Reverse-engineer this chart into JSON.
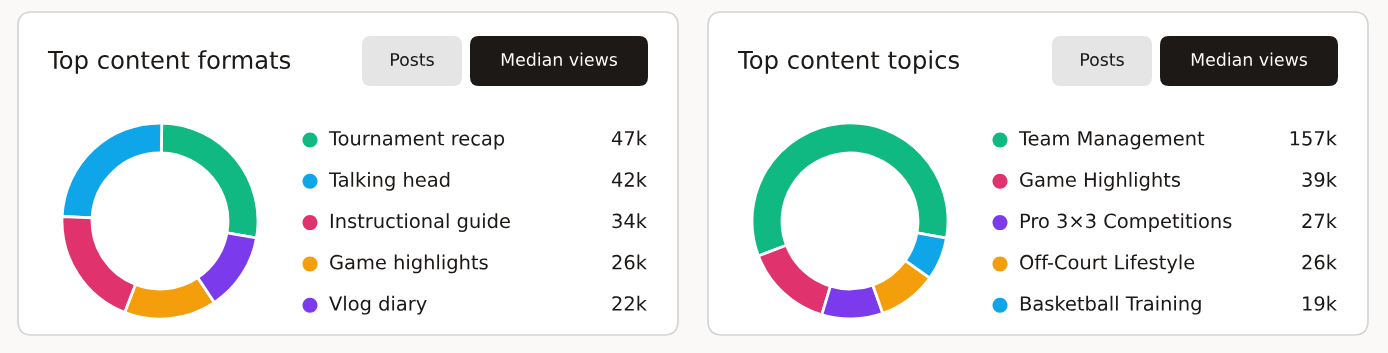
{
  "chart_data": [
    {
      "type": "donut",
      "title": "Top content formats",
      "categories": [
        "Tournament recap",
        "Talking head",
        "Instructional guide",
        "Game highlights",
        "Vlog diary"
      ],
      "values": [
        47,
        42,
        34,
        26,
        22
      ],
      "value_labels": [
        "47k",
        "42k",
        "34k",
        "26k",
        "22k"
      ],
      "colors": [
        "#10b981",
        "#0ea5e9",
        "#e0336e",
        "#f59e0b",
        "#7c3aed"
      ],
      "legend": "right",
      "annotations": [
        "Posts",
        "Median views"
      ]
    },
    {
      "type": "donut",
      "title": "Top content topics",
      "categories": [
        "Team Management",
        "Game Highlights",
        "Pro 3×3 Competitions",
        "Off-Court Lifestyle",
        "Basketball Training"
      ],
      "values": [
        157,
        39,
        27,
        26,
        19
      ],
      "value_labels": [
        "157k",
        "39k",
        "27k",
        "26k",
        "19k"
      ],
      "colors": [
        "#10b981",
        "#e0336e",
        "#7c3aed",
        "#f59e0b",
        "#0ea5e9"
      ],
      "legend": "right",
      "annotations": [
        "Posts",
        "Median views"
      ]
    }
  ]
}
